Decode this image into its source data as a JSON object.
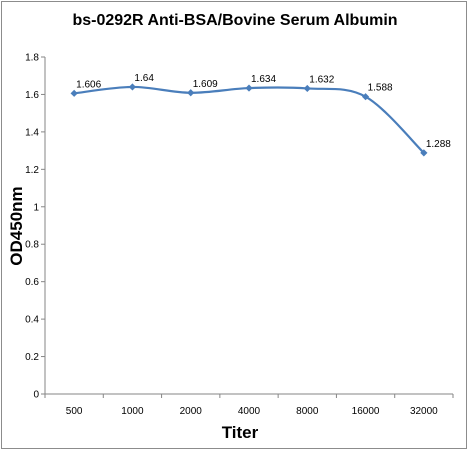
{
  "chart_data": {
    "type": "line",
    "title": "bs-0292R Anti-BSA/Bovine Serum Albumin",
    "xlabel": "Titer",
    "ylabel": "OD450nm",
    "categories": [
      "500",
      "1000",
      "2000",
      "4000",
      "8000",
      "16000",
      "32000"
    ],
    "series": [
      {
        "values": [
          1.606,
          1.64,
          1.609,
          1.634,
          1.632,
          1.588,
          1.288
        ]
      }
    ],
    "data_labels": [
      "1.606",
      "1.64",
      "1.609",
      "1.634",
      "1.632",
      "1.588",
      "1.288"
    ],
    "ylim": [
      0,
      1.8
    ],
    "yticks": [
      "0",
      "0.2",
      "0.4",
      "0.6",
      "0.8",
      "1",
      "1.2",
      "1.4",
      "1.6",
      "1.8"
    ],
    "grid": false,
    "legend": "none",
    "line_color": "#4a7ebb"
  }
}
